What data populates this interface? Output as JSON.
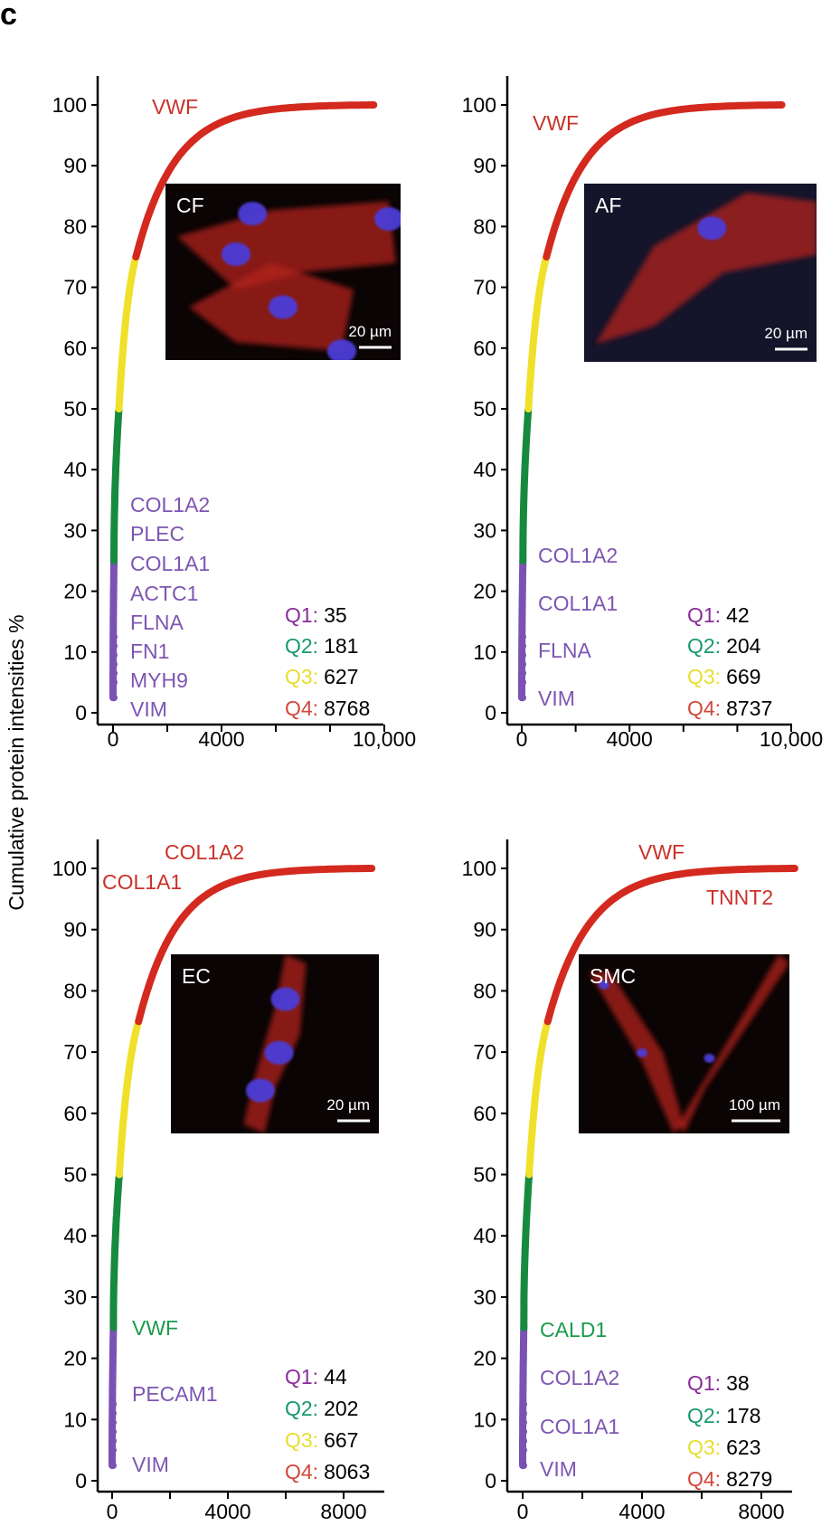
{
  "panel_letter": "c",
  "ylabel": "Cumulative protein intensities %",
  "colors": {
    "q1": "#7b52b4",
    "q2": "#168a3e",
    "q3": "#efe12a",
    "q4": "#d3291f",
    "q1_label": "#8a2c9a",
    "q2_label": "#17996a",
    "q3_label": "#e7de2e",
    "q4_label": "#d2473a",
    "gene_purple": "#7d56b2",
    "gene_green": "#1b9a4e",
    "gene_red": "#c9322a"
  },
  "chart_data": [
    {
      "type": "line",
      "inset_label": "CF",
      "scale_bar": "20 µm",
      "xticks": [
        0,
        2000,
        4000,
        6000,
        8000,
        10000
      ],
      "xtick_labels": [
        "0",
        "",
        "4000",
        "",
        "",
        "10,000"
      ],
      "yticks": [
        0,
        10,
        20,
        30,
        40,
        50,
        60,
        70,
        80,
        90,
        100
      ],
      "ylim": [
        0,
        100
      ],
      "quartiles": [
        {
          "label": "Q1:",
          "value": "35",
          "count": 35
        },
        {
          "label": "Q2:",
          "value": "181",
          "count": 181
        },
        {
          "label": "Q3:",
          "value": "627",
          "count": 627
        },
        {
          "label": "Q4:",
          "value": "8768",
          "count": 8768
        }
      ],
      "genes": [
        {
          "text": "VWF",
          "group": "red"
        },
        {
          "text": "COL1A2",
          "group": "purple"
        },
        {
          "text": "PLEC",
          "group": "purple"
        },
        {
          "text": "COL1A1",
          "group": "purple"
        },
        {
          "text": "ACTC1",
          "group": "purple"
        },
        {
          "text": "FLNA",
          "group": "purple"
        },
        {
          "text": "FN1",
          "group": "purple"
        },
        {
          "text": "MYH9",
          "group": "purple"
        },
        {
          "text": "VIM",
          "group": "purple"
        }
      ]
    },
    {
      "type": "line",
      "inset_label": "AF",
      "scale_bar": "20 µm",
      "xticks": [
        0,
        2000,
        4000,
        6000,
        8000,
        10000
      ],
      "xtick_labels": [
        "0",
        "",
        "4000",
        "",
        "",
        "10,000"
      ],
      "yticks": [
        0,
        10,
        20,
        30,
        40,
        50,
        60,
        70,
        80,
        90,
        100
      ],
      "ylim": [
        0,
        100
      ],
      "quartiles": [
        {
          "label": "Q1:",
          "value": "42",
          "count": 42
        },
        {
          "label": "Q2:",
          "value": "204",
          "count": 204
        },
        {
          "label": "Q3:",
          "value": "669",
          "count": 669
        },
        {
          "label": "Q4:",
          "value": "8737",
          "count": 8737
        }
      ],
      "genes": [
        {
          "text": "VWF",
          "group": "red"
        },
        {
          "text": "COL1A2",
          "group": "purple"
        },
        {
          "text": "COL1A1",
          "group": "purple"
        },
        {
          "text": "FLNA",
          "group": "purple"
        },
        {
          "text": "VIM",
          "group": "purple"
        }
      ]
    },
    {
      "type": "line",
      "inset_label": "EC",
      "scale_bar": "20 µm",
      "xticks": [
        0,
        2000,
        4000,
        6000,
        8000
      ],
      "xtick_labels": [
        "0",
        "",
        "4000",
        "",
        "8000"
      ],
      "yticks": [
        0,
        10,
        20,
        30,
        40,
        50,
        60,
        70,
        80,
        90,
        100
      ],
      "ylim": [
        0,
        100
      ],
      "quartiles": [
        {
          "label": "Q1:",
          "value": "44",
          "count": 44
        },
        {
          "label": "Q2:",
          "value": "202",
          "count": 202
        },
        {
          "label": "Q3:",
          "value": "667",
          "count": 667
        },
        {
          "label": "Q4:",
          "value": "8063",
          "count": 8063
        }
      ],
      "genes": [
        {
          "text": "COL1A2",
          "group": "red"
        },
        {
          "text": "COL1A1",
          "group": "red"
        },
        {
          "text": "VWF",
          "group": "green"
        },
        {
          "text": "PECAM1",
          "group": "purple"
        },
        {
          "text": "VIM",
          "group": "purple"
        }
      ]
    },
    {
      "type": "line",
      "inset_label": "SMC",
      "scale_bar": "100 µm",
      "xticks": [
        0,
        2000,
        4000,
        6000,
        8000
      ],
      "xtick_labels": [
        "0",
        "",
        "4000",
        "",
        "8000"
      ],
      "yticks": [
        0,
        10,
        20,
        30,
        40,
        50,
        60,
        70,
        80,
        90,
        100
      ],
      "ylim": [
        0,
        100
      ],
      "quartiles": [
        {
          "label": "Q1:",
          "value": "38",
          "count": 38
        },
        {
          "label": "Q2:",
          "value": "178",
          "count": 178
        },
        {
          "label": "Q3:",
          "value": "623",
          "count": 623
        },
        {
          "label": "Q4:",
          "value": "8279",
          "count": 8279
        }
      ],
      "genes": [
        {
          "text": "VWF",
          "group": "red"
        },
        {
          "text": "TNNT2",
          "group": "red"
        },
        {
          "text": "CALD1",
          "group": "green"
        },
        {
          "text": "COL1A2",
          "group": "purple"
        },
        {
          "text": "COL1A1",
          "group": "purple"
        },
        {
          "text": "VIM",
          "group": "purple"
        }
      ]
    }
  ]
}
